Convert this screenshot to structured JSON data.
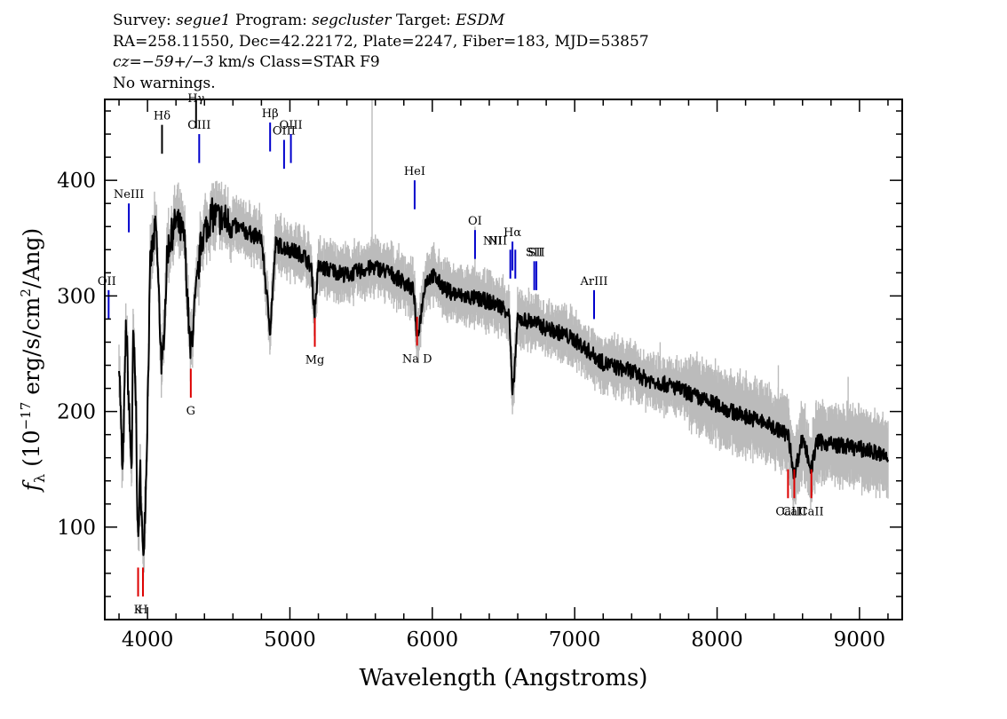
{
  "header": {
    "line1": {
      "survey_label": "Survey:",
      "survey": "segue1",
      "program_label": "Program:",
      "program": "segcluster",
      "target_label": "Target:",
      "target": "ESDM"
    },
    "line2": "RA=258.11550, Dec=42.22172, Plate=2247, Fiber=183, MJD=53857",
    "line3": {
      "redshift": "cz=−59+/−3",
      "unit": "km/s",
      "class": "Class=STAR F9"
    },
    "line4": "No warnings."
  },
  "chart_data": {
    "type": "line",
    "xlabel": "Wavelength (Angstroms)",
    "ylabel": "f_λ (10^-17 erg/s/cm^2/Ang)",
    "xlim": [
      3700,
      9300
    ],
    "ylim": [
      20,
      470
    ],
    "x_ticks": [
      4000,
      5000,
      6000,
      7000,
      8000,
      9000
    ],
    "y_ticks": [
      100,
      200,
      300,
      400
    ],
    "x_tick_labels": [
      "4000",
      "5000",
      "6000",
      "7000",
      "8000",
      "9000"
    ],
    "y_tick_labels": [
      "100",
      "200",
      "300",
      "400"
    ],
    "grid": false,
    "series": [
      {
        "color": "#000000",
        "x": [
          3800,
          3825,
          3850,
          3870,
          3889,
          3900,
          3920,
          3933,
          3950,
          3968,
          3990,
          4020,
          4060,
          4102,
          4140,
          4200,
          4260,
          4300,
          4340,
          4380,
          4450,
          4550,
          4650,
          4750,
          4800,
          4861,
          4900,
          5000,
          5100,
          5150,
          5173,
          5200,
          5300,
          5400,
          5500,
          5600,
          5700,
          5800,
          5870,
          5893,
          5950,
          6000,
          6100,
          6200,
          6300,
          6400,
          6500,
          6540,
          6563,
          6600,
          6700,
          6800,
          6900,
          7000,
          7100,
          7200,
          7300,
          7400,
          7500,
          7600,
          7700,
          7800,
          7900,
          8000,
          8100,
          8200,
          8300,
          8400,
          8498,
          8542,
          8600,
          8662,
          8700,
          8800,
          8900,
          9000,
          9100,
          9200
        ],
        "values": [
          250,
          140,
          280,
          200,
          150,
          270,
          200,
          80,
          150,
          70,
          140,
          330,
          360,
          230,
          340,
          365,
          350,
          250,
          300,
          350,
          370,
          365,
          358,
          352,
          350,
          270,
          345,
          340,
          335,
          325,
          285,
          325,
          322,
          318,
          322,
          325,
          320,
          312,
          305,
          260,
          312,
          318,
          305,
          300,
          298,
          295,
          290,
          285,
          210,
          280,
          278,
          272,
          268,
          262,
          252,
          242,
          238,
          235,
          228,
          225,
          221,
          216,
          210,
          206,
          200,
          196,
          192,
          186,
          180,
          145,
          178,
          150,
          174,
          172,
          170,
          168,
          165,
          160
        ]
      }
    ],
    "lines": [
      {
        "label": "OII",
        "wavelength": 3727,
        "y_level": 305,
        "color": "#0000cc",
        "kind": "emission"
      },
      {
        "label": "NeIII",
        "wavelength": 3869,
        "y_level": 380,
        "color": "#0000cc",
        "kind": "emission"
      },
      {
        "label": "Hδ",
        "wavelength": 4102,
        "y_level": 448,
        "color": "#000000",
        "kind": "emission"
      },
      {
        "label": "Hγ",
        "wavelength": 4341,
        "y_level": 470,
        "color": "#000000",
        "kind": "emission"
      },
      {
        "label": "OIII",
        "wavelength": 4363,
        "y_level": 440,
        "color": "#0000cc",
        "kind": "emission"
      },
      {
        "label": "Hβ",
        "wavelength": 4861,
        "y_level": 450,
        "color": "#0000cc",
        "kind": "emission"
      },
      {
        "label": "OIII",
        "wavelength": 4959,
        "y_level": 435,
        "color": "#0000cc",
        "kind": "emission"
      },
      {
        "label": "OIII",
        "wavelength": 5007,
        "y_level": 440,
        "color": "#0000cc",
        "kind": "emission"
      },
      {
        "label": "HeI",
        "wavelength": 5876,
        "y_level": 400,
        "color": "#0000cc",
        "kind": "emission"
      },
      {
        "label": "OI",
        "wavelength": 6300,
        "y_level": 357,
        "color": "#0000cc",
        "kind": "emission"
      },
      {
        "label": "NII",
        "wavelength": 6548,
        "y_level": 340,
        "color": "#0000cc",
        "kind": "emission"
      },
      {
        "label": "Hα",
        "wavelength": 6563,
        "y_level": 347,
        "color": "#0000cc",
        "kind": "emission"
      },
      {
        "label": "NII",
        "wavelength": 6583,
        "y_level": 340,
        "color": "#0000cc",
        "kind": "emission"
      },
      {
        "label": "SII",
        "wavelength": 6716,
        "y_level": 330,
        "color": "#0000cc",
        "kind": "emission"
      },
      {
        "label": "SII",
        "wavelength": 6731,
        "y_level": 330,
        "color": "#0000cc",
        "kind": "emission"
      },
      {
        "label": "ArIII",
        "wavelength": 7136,
        "y_level": 305,
        "color": "#0000cc",
        "kind": "emission"
      },
      {
        "label": "K",
        "wavelength": 3934,
        "y_level": 40,
        "color": "#dd0000",
        "kind": "absorption"
      },
      {
        "label": "H",
        "wavelength": 3968,
        "y_level": 40,
        "color": "#dd0000",
        "kind": "absorption"
      },
      {
        "label": "G",
        "wavelength": 4304,
        "y_level": 212,
        "color": "#dd0000",
        "kind": "absorption"
      },
      {
        "label": "Mg",
        "wavelength": 5175,
        "y_level": 256,
        "color": "#dd0000",
        "kind": "absorption"
      },
      {
        "label": "Na D",
        "wavelength": 5893,
        "y_level": 257,
        "color": "#dd0000",
        "kind": "absorption"
      },
      {
        "label": "CaII",
        "wavelength": 8498,
        "y_level": 125,
        "color": "#dd0000",
        "kind": "absorption"
      },
      {
        "label": "CaII",
        "wavelength": 8542,
        "y_level": 125,
        "color": "#dd0000",
        "kind": "absorption"
      },
      {
        "label": "CaII",
        "wavelength": 8662,
        "y_level": 125,
        "color": "#dd0000",
        "kind": "absorption"
      }
    ],
    "colors": {
      "flux": "#000000",
      "error_band": "#bbbbbb",
      "emission_marker": "#0000cc",
      "absorption_marker": "#dd0000"
    }
  }
}
